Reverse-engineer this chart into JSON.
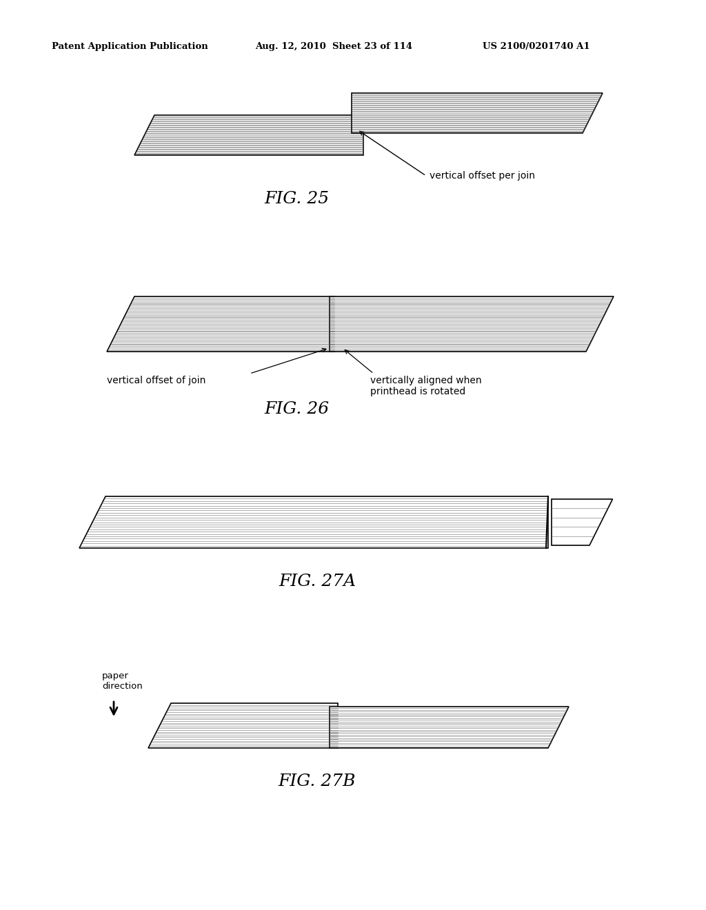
{
  "header_left": "Patent Application Publication",
  "header_mid": "Aug. 12, 2010  Sheet 23 of 114",
  "header_right": "US 2100/0201740 A1",
  "fig25_label": "FIG. 25",
  "fig26_label": "FIG. 26",
  "fig27a_label": "FIG. 27A",
  "fig27b_label": "FIG. 27B",
  "label_vertical_offset_per_join": "vertical offset per join",
  "label_vertical_offset_of_join": "vertical offset of join",
  "label_vertically_aligned": "vertically aligned when\nprinthead is rotated",
  "label_paper_direction": "paper\ndirection",
  "bg_color": "#ffffff"
}
